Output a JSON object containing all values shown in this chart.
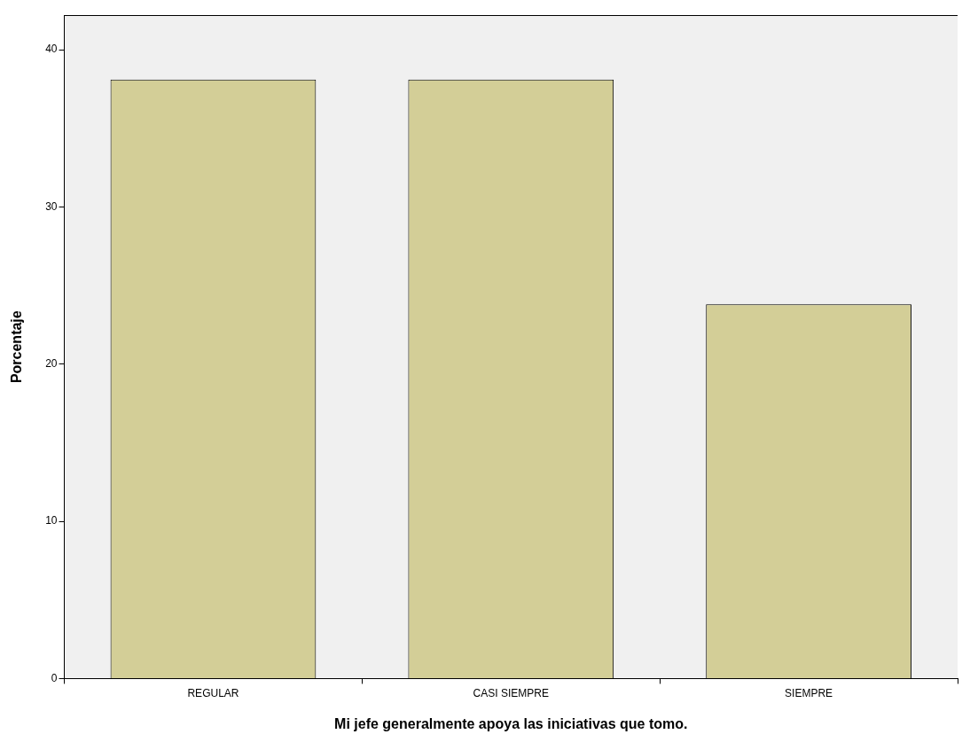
{
  "chart_data": {
    "type": "bar",
    "xlabel": "Mi jefe generalmente apoya las iniciativas que tomo.",
    "ylabel": "Porcentaje",
    "categories": [
      "REGULAR",
      "CASI SIEMPRE",
      "SIEMPRE"
    ],
    "values": [
      38.1,
      38.1,
      23.8
    ],
    "color": "#d3ce97",
    "ylim": [
      0,
      42.2
    ],
    "yticks": [
      0,
      10,
      20,
      30,
      40
    ],
    "grid": false,
    "legend": false
  }
}
